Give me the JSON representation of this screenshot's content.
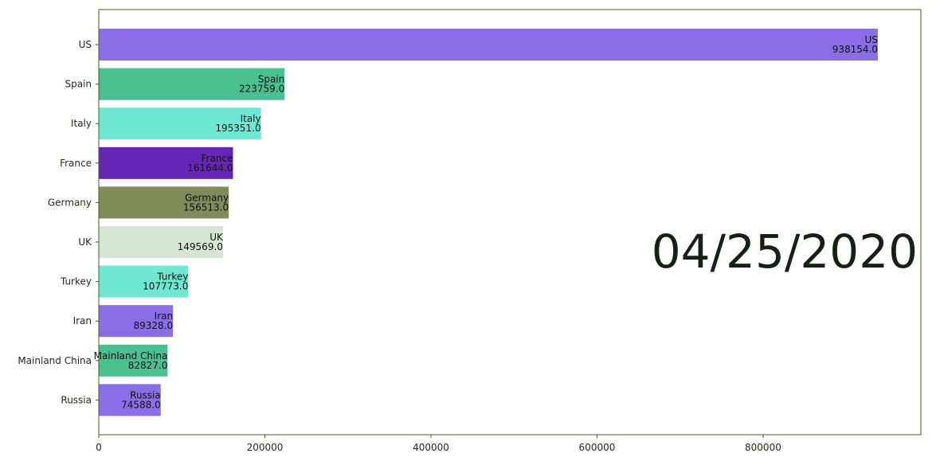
{
  "chart_data": {
    "type": "bar",
    "orientation": "horizontal",
    "date_label": "04/25/2020",
    "categories": [
      "US",
      "Spain",
      "Italy",
      "France",
      "Germany",
      "UK",
      "Turkey",
      "Iran",
      "Mainland China",
      "Russia"
    ],
    "values": [
      938154.0,
      223759.0,
      195351.0,
      161644.0,
      156513.0,
      149569.0,
      107773.0,
      89328.0,
      82827.0,
      74588.0
    ],
    "value_labels": [
      "938154.0",
      "223759.0",
      "195351.0",
      "161644.0",
      "156513.0",
      "149569.0",
      "107773.0",
      "89328.0",
      "82827.0",
      "74588.0"
    ],
    "colors": [
      "#8a6ee6",
      "#4bbf8f",
      "#6ee8d2",
      "#6526b8",
      "#7f8c5a",
      "#d5e6d2",
      "#6ee8d2",
      "#8a6ee6",
      "#4bbf8f",
      "#8a6ee6"
    ],
    "x_ticks": [
      0,
      200000,
      400000,
      600000,
      800000
    ],
    "x_tick_labels": [
      "0",
      "200000",
      "400000",
      "600000",
      "800000"
    ],
    "xlim": [
      0,
      990000
    ],
    "grid": false,
    "xlabel": "",
    "ylabel": "",
    "title": ""
  }
}
